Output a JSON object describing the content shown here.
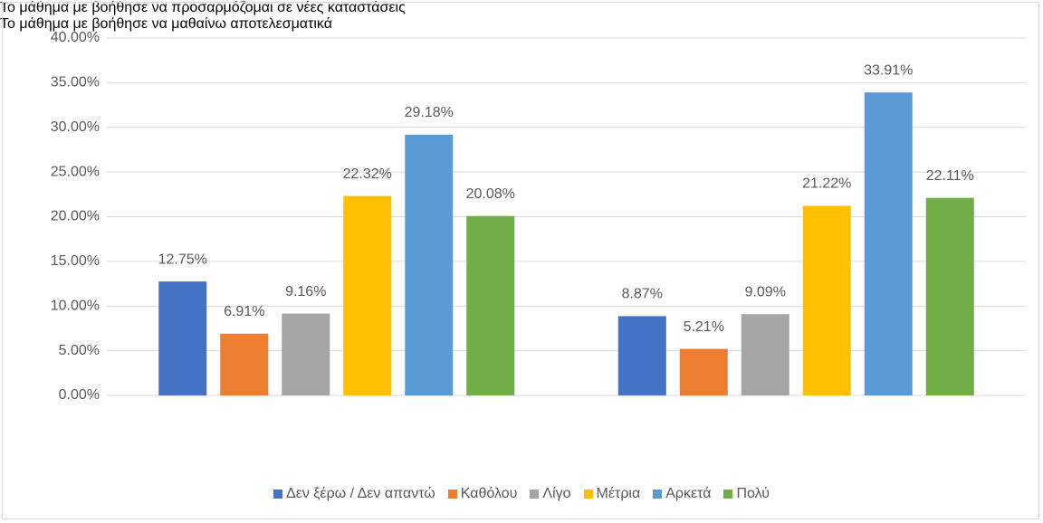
{
  "chart_data": {
    "type": "bar",
    "categories": [
      "Το μάθημα με βοήθησε να προσαρμόζομαι σε νέες καταστάσεις",
      "Το μάθημα με βοήθησε να μαθαίνω αποτελεσματικά"
    ],
    "series": [
      {
        "name": "Δεν ξέρω / Δεν απαντώ",
        "color": "#4472c4",
        "values": [
          12.75,
          8.87
        ],
        "value_labels": [
          "12.75%",
          "8.87%"
        ]
      },
      {
        "name": "Καθόλου",
        "color": "#ed7d31",
        "values": [
          6.91,
          5.21
        ],
        "value_labels": [
          "6.91%",
          "5.21%"
        ]
      },
      {
        "name": "Λίγο",
        "color": "#a5a5a5",
        "values": [
          9.16,
          9.09
        ],
        "value_labels": [
          "9.16%",
          "9.09%"
        ]
      },
      {
        "name": "Μέτρια",
        "color": "#ffc000",
        "values": [
          22.32,
          21.22
        ],
        "value_labels": [
          "22.32%",
          "21.22%"
        ]
      },
      {
        "name": "Αρκετά",
        "color": "#5b9bd5",
        "values": [
          29.18,
          33.91
        ],
        "value_labels": [
          "29.18%",
          "33.91%"
        ]
      },
      {
        "name": "Πολύ",
        "color": "#70ad47",
        "values": [
          20.08,
          22.11
        ],
        "value_labels": [
          "20.08%",
          "22.11%"
        ]
      }
    ],
    "ylim": [
      0,
      40
    ],
    "yticks": [
      {
        "value": 0,
        "label": "0.00%"
      },
      {
        "value": 5,
        "label": "5.00%"
      },
      {
        "value": 10,
        "label": "10.00%"
      },
      {
        "value": 15,
        "label": "15.00%"
      },
      {
        "value": 20,
        "label": "20.00%"
      },
      {
        "value": 25,
        "label": "25.00%"
      },
      {
        "value": 30,
        "label": "30.00%"
      },
      {
        "value": 35,
        "label": "35.00%"
      },
      {
        "value": 40,
        "label": "40.00%"
      }
    ],
    "grid": true,
    "legend": "bottom"
  }
}
